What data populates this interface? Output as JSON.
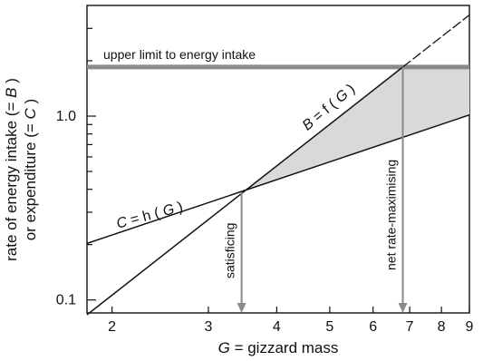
{
  "chart_data": {
    "type": "line",
    "x_scale": "log",
    "y_scale": "log",
    "xlim": [
      1.8,
      9.0
    ],
    "ylim": [
      0.085,
      4.0
    ],
    "x_ticks": [
      {
        "value": 2,
        "label": "2"
      },
      {
        "value": 3,
        "label": "3"
      },
      {
        "value": 4,
        "label": "4"
      },
      {
        "value": 5,
        "label": "5"
      },
      {
        "value": 6,
        "label": "6"
      },
      {
        "value": 7,
        "label": "7"
      },
      {
        "value": 8,
        "label": "8"
      },
      {
        "value": 9,
        "label": "9"
      }
    ],
    "y_ticks": [
      {
        "value": 0.1,
        "label": "0.1"
      },
      {
        "value": 0.2,
        "label": ""
      },
      {
        "value": 0.3,
        "label": ""
      },
      {
        "value": 0.4,
        "label": ""
      },
      {
        "value": 0.5,
        "label": ""
      },
      {
        "value": 0.6,
        "label": ""
      },
      {
        "value": 0.7,
        "label": ""
      },
      {
        "value": 0.8,
        "label": ""
      },
      {
        "value": 0.9,
        "label": ""
      },
      {
        "value": 1.0,
        "label": "1.0"
      },
      {
        "value": 2.0,
        "label": ""
      },
      {
        "value": 3.0,
        "label": ""
      }
    ],
    "x_label_parts": {
      "italic": "G",
      "rest": " = gizzard mass"
    },
    "y_label_lines": [
      {
        "prefix": "rate of energy intake (=",
        "italic": "B",
        "suffix": ")"
      },
      {
        "prefix": "or expenditure (=",
        "italic": "C",
        "suffix": ")"
      }
    ],
    "series": [
      {
        "key": "C",
        "label_parts": [
          "C",
          " = h (",
          "G",
          ")"
        ],
        "points": [
          {
            "x": 1.8,
            "y": 0.203
          },
          {
            "x": 9.0,
            "y": 1.015
          }
        ],
        "style": "solid"
      },
      {
        "key": "B",
        "label_parts": [
          "B",
          " = f (",
          "G",
          ")"
        ],
        "points": [
          {
            "x": 1.8,
            "y": 0.083
          },
          {
            "x": 6.8,
            "y": 1.85
          }
        ],
        "style": "solid"
      },
      {
        "key": "B-extension",
        "points": [
          {
            "x": 6.8,
            "y": 1.85
          },
          {
            "x": 9.0,
            "y": 3.55
          }
        ],
        "style": "dashed"
      }
    ],
    "shaded_region": {
      "from_x": 3.45,
      "to_x": 9.0,
      "upper_limit": 1.85
    },
    "upper_limit": {
      "value": 1.85,
      "label": "upper limit to energy intake"
    },
    "markers": [
      {
        "x": 3.45,
        "from_y": 0.385,
        "label": "satisficing"
      },
      {
        "x": 6.8,
        "from_y": 1.85,
        "label": "net rate-maximising"
      }
    ]
  }
}
